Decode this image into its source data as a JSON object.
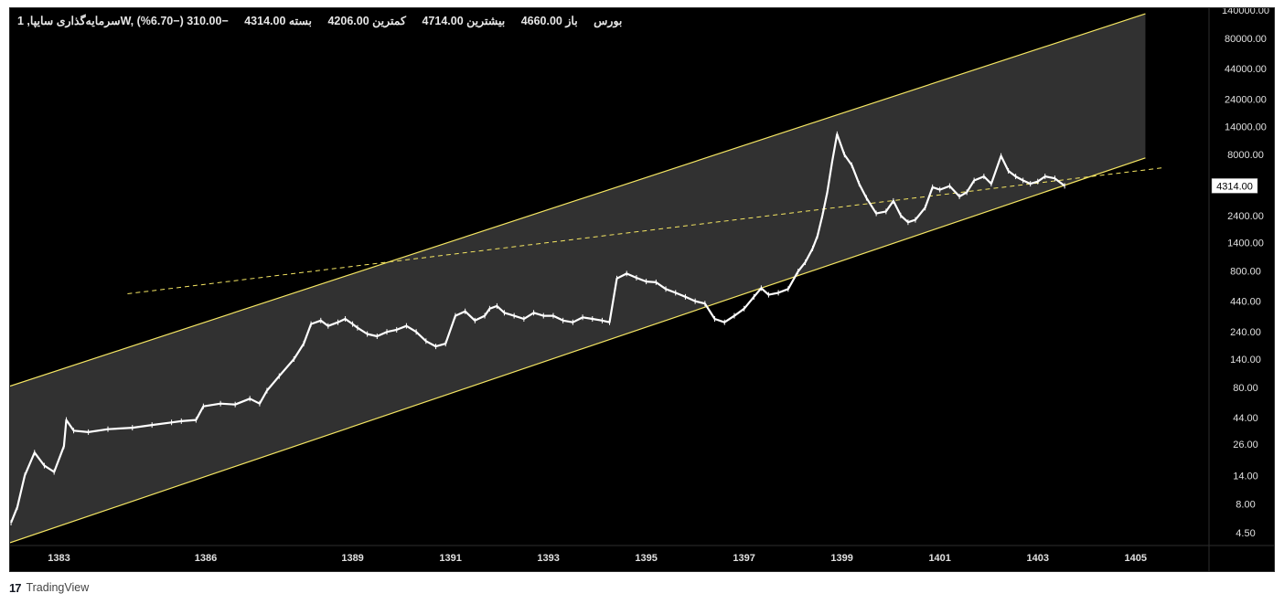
{
  "legend": {
    "symbol": "سرمایه‌گذاری سایپا, 1W, بورس",
    "open": "باز 4660.00",
    "high": "بیشترین 4714.00",
    "low": "کمترین 4206.00",
    "close": "بسته 4314.00",
    "change": "−310.00 (−6.70%)"
  },
  "footer": {
    "brand": "TradingView",
    "logo_icon": "tradingview-logo-icon"
  },
  "colors": {
    "background": "#000000",
    "channel_fill": "#363636",
    "channel_line": "#f5e663",
    "price": "#ffffff",
    "axis_text": "#e0e0e0"
  },
  "chart_data": {
    "type": "line",
    "scale": "log",
    "ylim": [
      3.5,
      145000
    ],
    "xlim": [
      1382.0,
      1406.5
    ],
    "x_ticks": [
      "1383",
      "1386",
      "1389",
      "1391",
      "1393",
      "1395",
      "1397",
      "1399",
      "1401",
      "1403",
      "1405"
    ],
    "y_ticks": [
      "140000.00",
      "80000.00",
      "44000.00",
      "24000.00",
      "14000.00",
      "8000.00",
      "2400.00",
      "1400.00",
      "800.00",
      "440.00",
      "240.00",
      "140.00",
      "80.00",
      "44.00",
      "26.00",
      "14.00",
      "8.00",
      "4.50"
    ],
    "last_price_label": "4314.00",
    "series": [
      {
        "x": [
          1382.02,
          1382.15,
          1382.3,
          1382.5,
          1382.7,
          1382.9,
          1383.1,
          1383.15,
          1383.3,
          1383.6,
          1384.0,
          1384.5,
          1384.9,
          1385.3,
          1385.5,
          1385.8,
          1385.95,
          1386.3,
          1386.6,
          1386.9,
          1387.1,
          1387.25,
          1387.5,
          1387.8,
          1388.0,
          1388.15,
          1388.35,
          1388.5,
          1388.7,
          1388.85,
          1389.0,
          1389.1,
          1389.3,
          1389.5,
          1389.7,
          1389.9,
          1390.1,
          1390.3,
          1390.5,
          1390.7,
          1390.9,
          1391.1,
          1391.3,
          1391.5,
          1391.7,
          1391.8,
          1391.95,
          1392.1,
          1392.3,
          1392.5,
          1392.7,
          1392.9,
          1393.1,
          1393.3,
          1393.5,
          1393.7,
          1393.9,
          1394.1,
          1394.25,
          1394.4,
          1394.6,
          1394.8,
          1395.0,
          1395.2,
          1395.4,
          1395.6,
          1395.8,
          1396.0,
          1396.2,
          1396.4,
          1396.6,
          1396.8,
          1397.0,
          1397.2,
          1397.35,
          1397.5,
          1397.7,
          1397.9,
          1398.1,
          1398.25,
          1398.4,
          1398.5,
          1398.6,
          1398.7,
          1398.8,
          1398.9,
          1399.05,
          1399.2,
          1399.35,
          1399.5,
          1399.7,
          1399.9,
          1400.05,
          1400.2,
          1400.35,
          1400.5,
          1400.7,
          1400.85,
          1401.0,
          1401.2,
          1401.4,
          1401.55,
          1401.7,
          1401.9,
          1402.05,
          1402.25,
          1402.4,
          1402.55,
          1402.7,
          1402.85,
          1403.0,
          1403.15,
          1403.35,
          1403.55
        ],
        "y": [
          5.5,
          7.5,
          14,
          22,
          17,
          15,
          25,
          42,
          34,
          33,
          35,
          36,
          38,
          40,
          41,
          42,
          55,
          58,
          57,
          64,
          58,
          75,
          100,
          140,
          190,
          280,
          300,
          270,
          290,
          310,
          280,
          260,
          230,
          220,
          240,
          250,
          270,
          240,
          200,
          180,
          190,
          330,
          360,
          300,
          330,
          380,
          400,
          350,
          330,
          310,
          350,
          330,
          330,
          300,
          290,
          320,
          310,
          300,
          290,
          690,
          760,
          700,
          650,
          640,
          560,
          520,
          480,
          440,
          420,
          310,
          290,
          330,
          380,
          480,
          570,
          500,
          520,
          560,
          790,
          950,
          1250,
          1600,
          2400,
          3800,
          7000,
          12000,
          8000,
          6500,
          4500,
          3400,
          2500,
          2600,
          3200,
          2400,
          2100,
          2200,
          2800,
          4200,
          4000,
          4300,
          3500,
          3800,
          4800,
          5200,
          4500,
          7800,
          5800,
          5200,
          4800,
          4500,
          4700,
          5200,
          5000,
          4314
        ]
      }
    ],
    "channel": {
      "upper": {
        "x": [
          1382.0,
          1405.2
        ],
        "y": [
          82,
          130000
        ]
      },
      "lower": {
        "x": [
          1382.0,
          1405.2
        ],
        "y": [
          3.7,
          7500
        ]
      },
      "median_dashed": {
        "x": [
          1384.4,
          1405.6
        ],
        "y": [
          510,
          6200
        ]
      }
    }
  }
}
